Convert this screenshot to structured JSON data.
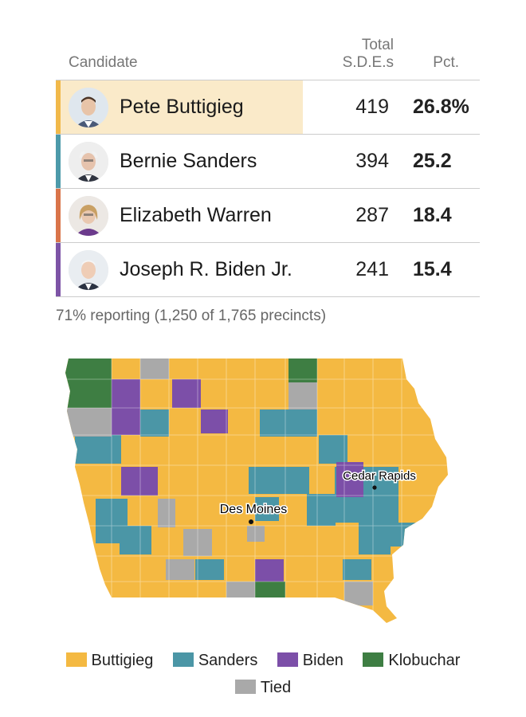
{
  "header": {
    "candidate": "Candidate",
    "total_line1": "Total",
    "total_line2": "S.D.E.s",
    "pct": "Pct."
  },
  "rows": [
    {
      "name": "Pete Buttigieg",
      "votes": "419",
      "pct": "26.8%",
      "color": "#f1b94a",
      "highlight": true
    },
    {
      "name": "Bernie Sanders",
      "votes": "394",
      "pct": "25.2",
      "color": "#4d9aaa",
      "highlight": false
    },
    {
      "name": "Elizabeth Warren",
      "votes": "287",
      "pct": "18.4",
      "color": "#d9744a",
      "highlight": false
    },
    {
      "name": "Joseph R. Biden Jr.",
      "votes": "241",
      "pct": "15.4",
      "color": "#7d54a6",
      "highlight": false
    }
  ],
  "reporting": "71% reporting (1,250 of 1,765 precincts)",
  "map": {
    "cities": [
      "Des Moines",
      "Cedar Rapids"
    ],
    "colors": {
      "buttigieg": "#f4b942",
      "sanders": "#4b96a6",
      "biden": "#7c4fa8",
      "klobuchar": "#3e7e43",
      "tied": "#a9a9a9"
    }
  },
  "legend": {
    "items": [
      {
        "label": "Buttigieg",
        "color": "#f4b942"
      },
      {
        "label": "Sanders",
        "color": "#4b96a6"
      },
      {
        "label": "Biden",
        "color": "#7c4fa8"
      },
      {
        "label": "Klobuchar",
        "color": "#3e7e43"
      },
      {
        "label": "Tied",
        "color": "#a9a9a9"
      }
    ]
  }
}
